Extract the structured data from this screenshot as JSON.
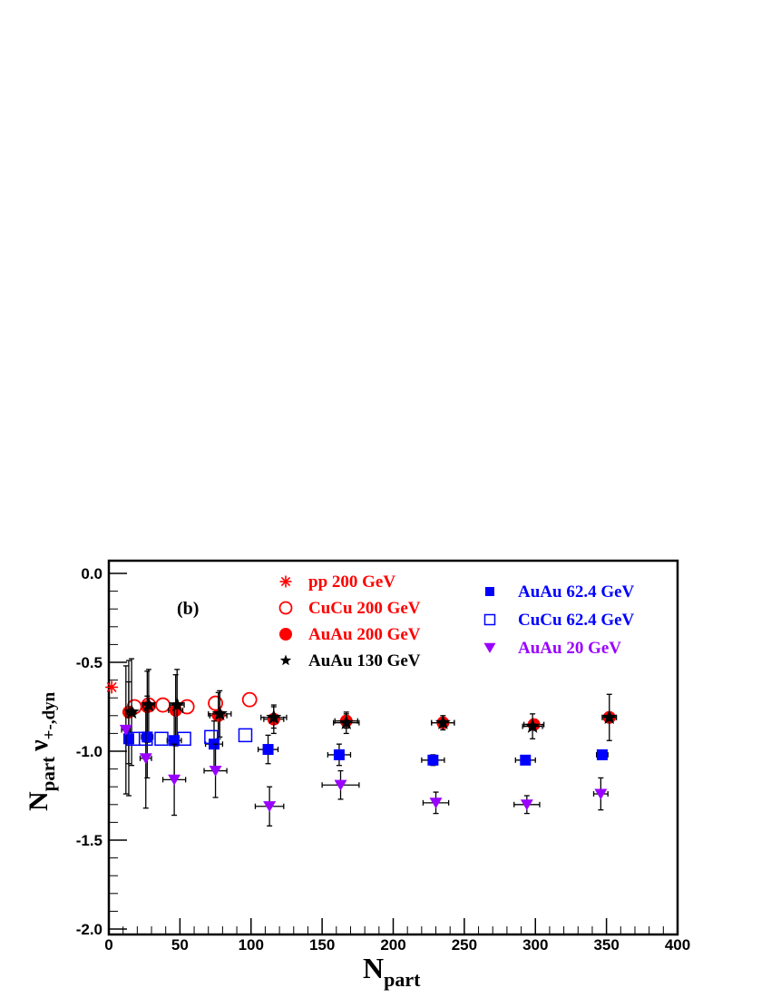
{
  "chart_data": {
    "type": "scatter",
    "panel_label": "(b)",
    "xlabel": {
      "main": "N",
      "sub": "part"
    },
    "ylabel": {
      "main": "N",
      "sub1": "part",
      "greek": "ν",
      "sub2": "+-,dyn"
    },
    "xlim": [
      0,
      400
    ],
    "ylim": [
      -2.0,
      0.0
    ],
    "xticks": [
      0,
      50,
      100,
      150,
      200,
      250,
      300,
      350,
      400
    ],
    "yticks": [
      0.0,
      -0.5,
      -1.0,
      -1.5,
      -2.0
    ],
    "xtick_labels": [
      "0",
      "50",
      "100",
      "150",
      "200",
      "250",
      "300",
      "350",
      "400"
    ],
    "ytick_labels": [
      "0.0",
      "-0.5",
      "-1.0",
      "-1.5",
      "-2.0"
    ],
    "grid": false,
    "series": [
      {
        "name": "pp 200 GeV",
        "color": "#ff0000",
        "marker": "asterisk",
        "points": [
          {
            "x": 2,
            "y": -0.64,
            "ex": 0,
            "ey": 0
          }
        ]
      },
      {
        "name": "CuCu 200 GeV",
        "color": "#ff0000",
        "marker": "circle-open",
        "points": [
          {
            "x": 18,
            "y": -0.75,
            "ex": 0,
            "ey": 0
          },
          {
            "x": 28,
            "y": -0.74,
            "ex": 0,
            "ey": 0
          },
          {
            "x": 38,
            "y": -0.74,
            "ex": 0,
            "ey": 0
          },
          {
            "x": 55,
            "y": -0.75,
            "ex": 0,
            "ey": 0
          },
          {
            "x": 75,
            "y": -0.73,
            "ex": 0,
            "ey": 0
          },
          {
            "x": 99,
            "y": -0.71,
            "ex": 0,
            "ey": 0
          }
        ]
      },
      {
        "name": "AuAu 200 GeV",
        "color": "#ff0000",
        "marker": "circle-filled",
        "points": [
          {
            "x": 14,
            "y": -0.78,
            "ex": 3,
            "ey": 0.29
          },
          {
            "x": 27,
            "y": -0.75,
            "ex": 4,
            "ey": 0.2
          },
          {
            "x": 47,
            "y": -0.77,
            "ex": 5,
            "ey": 0.2
          },
          {
            "x": 77,
            "y": -0.8,
            "ex": 6,
            "ey": 0.13
          },
          {
            "x": 116,
            "y": -0.82,
            "ex": 7,
            "ey": 0.08
          },
          {
            "x": 167,
            "y": -0.83,
            "ex": 8,
            "ey": 0.04
          },
          {
            "x": 235,
            "y": -0.84,
            "ex": 8,
            "ey": 0.03
          },
          {
            "x": 299,
            "y": -0.85,
            "ex": 7,
            "ey": 0.03
          },
          {
            "x": 352,
            "y": -0.81,
            "ex": 4,
            "ey": 0.03
          }
        ]
      },
      {
        "name": "AuAu 130 GeV",
        "color": "#000000",
        "marker": "star",
        "points": [
          {
            "x": 16,
            "y": -0.78,
            "ex": 3,
            "ey": 0.3
          },
          {
            "x": 28,
            "y": -0.74,
            "ex": 4,
            "ey": 0.2
          },
          {
            "x": 48,
            "y": -0.74,
            "ex": 5,
            "ey": 0.2
          },
          {
            "x": 78,
            "y": -0.79,
            "ex": 8,
            "ey": 0.13
          },
          {
            "x": 116,
            "y": -0.81,
            "ex": 9,
            "ey": 0.06
          },
          {
            "x": 167,
            "y": -0.84,
            "ex": 9,
            "ey": 0.06
          },
          {
            "x": 235,
            "y": -0.84,
            "ex": 8,
            "ey": 0.04
          },
          {
            "x": 298,
            "y": -0.86,
            "ex": 7,
            "ey": 0.07
          },
          {
            "x": 352,
            "y": -0.81,
            "ex": 5,
            "ey": 0.13
          }
        ]
      },
      {
        "name": "AuAu 62.4 GeV",
        "color": "#0000ff",
        "marker": "square-filled",
        "points": [
          {
            "x": 14,
            "y": -0.93,
            "ex": 3,
            "ey": 0.32
          },
          {
            "x": 27,
            "y": -0.92,
            "ex": 4,
            "ey": 0.23
          },
          {
            "x": 46,
            "y": -0.94,
            "ex": 5,
            "ey": 0.2
          },
          {
            "x": 74,
            "y": -0.96,
            "ex": 6,
            "ey": 0.13
          },
          {
            "x": 112,
            "y": -0.99,
            "ex": 7,
            "ey": 0.08
          },
          {
            "x": 162,
            "y": -1.02,
            "ex": 8,
            "ey": 0.06
          },
          {
            "x": 228,
            "y": -1.05,
            "ex": 8,
            "ey": 0.03
          },
          {
            "x": 293,
            "y": -1.05,
            "ex": 7,
            "ey": 0.02
          },
          {
            "x": 347,
            "y": -1.02,
            "ex": 4,
            "ey": 0.02
          }
        ]
      },
      {
        "name": "CuCu 62.4 GeV",
        "color": "#0000ff",
        "marker": "square-open",
        "points": [
          {
            "x": 17,
            "y": -0.93,
            "ex": 0,
            "ey": 0
          },
          {
            "x": 26,
            "y": -0.93,
            "ex": 0,
            "ey": 0
          },
          {
            "x": 37,
            "y": -0.93,
            "ex": 0,
            "ey": 0
          },
          {
            "x": 53,
            "y": -0.93,
            "ex": 0,
            "ey": 0
          },
          {
            "x": 72,
            "y": -0.92,
            "ex": 0,
            "ey": 0
          },
          {
            "x": 96,
            "y": -0.91,
            "ex": 0,
            "ey": 0
          }
        ]
      },
      {
        "name": "AuAu 20 GeV",
        "color": "#9900ff",
        "marker": "triangle-down",
        "points": [
          {
            "x": 12,
            "y": -0.88,
            "ex": 3,
            "ey": 0.36
          },
          {
            "x": 26,
            "y": -1.04,
            "ex": 4,
            "ey": 0.28
          },
          {
            "x": 46,
            "y": -1.16,
            "ex": 8,
            "ey": 0.2
          },
          {
            "x": 75,
            "y": -1.11,
            "ex": 8,
            "ey": 0.15
          },
          {
            "x": 113,
            "y": -1.31,
            "ex": 10,
            "ey": 0.11
          },
          {
            "x": 163,
            "y": -1.19,
            "ex": 13,
            "ey": 0.08
          },
          {
            "x": 230,
            "y": -1.29,
            "ex": 9,
            "ey": 0.06
          },
          {
            "x": 294,
            "y": -1.3,
            "ex": 9,
            "ey": 0.05
          },
          {
            "x": 346,
            "y": -1.24,
            "ex": 5,
            "ey": 0.09
          }
        ]
      }
    ],
    "legend": {
      "left": [
        "pp 200 GeV",
        "CuCu 200 GeV",
        "AuAu 200 GeV",
        "AuAu 130 GeV"
      ],
      "right": [
        "AuAu 62.4 GeV",
        "CuCu 62.4 GeV",
        "AuAu 20 GeV"
      ]
    }
  }
}
